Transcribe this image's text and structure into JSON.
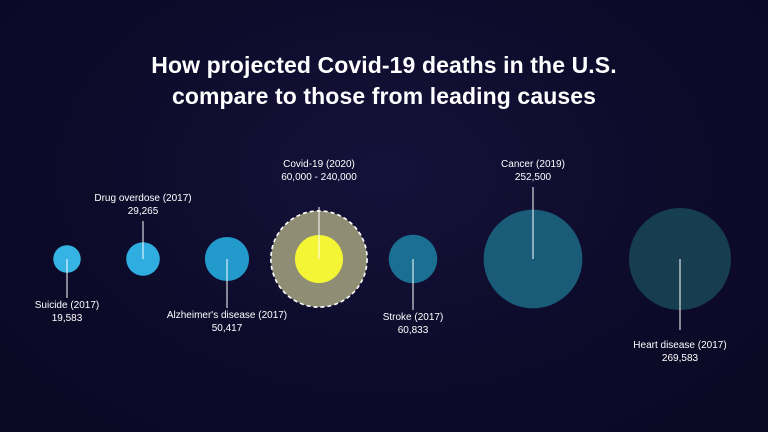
{
  "title_line1": "How projected Covid-19 deaths in the U.S.",
  "title_line2": "compare to those from leading causes",
  "chart_data": {
    "type": "bubble",
    "title": "How projected Covid-19 deaths in the U.S. compare to those from leading causes",
    "items": [
      {
        "name": "Suicide (2017)",
        "value_label": "19,583",
        "value": 19583,
        "color": "#35b3e3",
        "label_pos": "below"
      },
      {
        "name": "Drug overdose (2017)",
        "value_label": "29,265",
        "value": 29265,
        "color": "#2fade0",
        "label_pos": "above"
      },
      {
        "name": "Alzheimer's disease (2017)",
        "value_label": "50,417",
        "value": 50417,
        "color": "#229bcc",
        "label_pos": "below"
      },
      {
        "name": "Covid-19 (2020)",
        "value_label": "60,000 - 240,000",
        "value": 60000,
        "value_high": 240000,
        "color": "#f4f535",
        "range_color": "#8f8e74",
        "label_pos": "above"
      },
      {
        "name": "Stroke (2017)",
        "value_label": "60,833",
        "value": 60833,
        "color": "#1a6f92",
        "label_pos": "below"
      },
      {
        "name": "Cancer (2019)",
        "value_label": "252,500",
        "value": 252500,
        "color": "#1a5b77",
        "label_pos": "above"
      },
      {
        "name": "Heart disease (2017)",
        "value_label": "269,583",
        "value": 269583,
        "color": "#173d51",
        "label_pos": "below"
      }
    ]
  }
}
